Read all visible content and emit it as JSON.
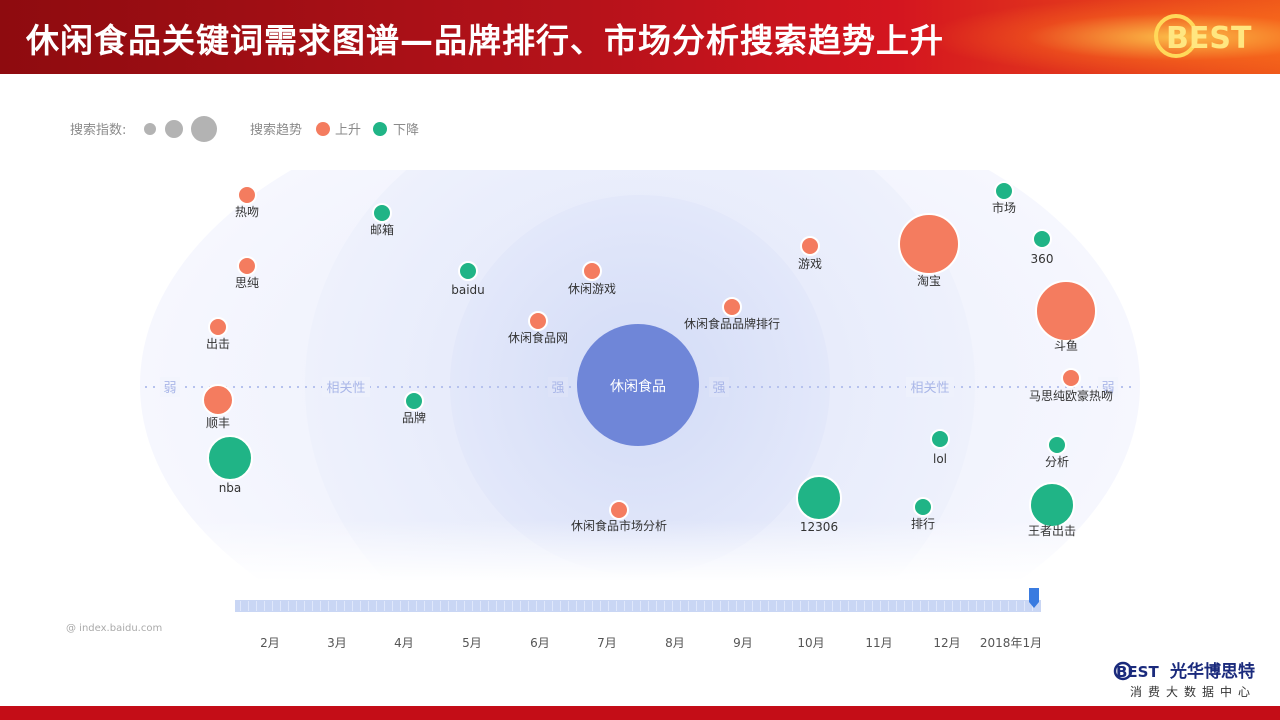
{
  "header": {
    "title": "休闲食品关键词需求图谱—品牌排行、市场分析搜索趋势上升"
  },
  "colors": {
    "rise": "#f47c5f",
    "fall": "#20b486",
    "center": "#6f86d8",
    "legend_gray": "#b3b3b3",
    "timeline": "#c9d6f4",
    "handle": "#3a7be0"
  },
  "chart_data": {
    "type": "scatter",
    "title": "",
    "center_keyword": "休闲食品",
    "legend": {
      "size_label": "搜索指数:",
      "trend_label": "搜索趋势",
      "rise_label": "上升",
      "fall_label": "下降"
    },
    "axis_words": {
      "left_outer": "弱",
      "left_mid": "相关性",
      "left_inner": "强",
      "right_inner": "强",
      "right_mid": "相关性",
      "right_outer": "弱"
    },
    "keywords": [
      {
        "label": "热吻",
        "trend": "上升",
        "size": "small"
      },
      {
        "label": "思纯",
        "trend": "上升",
        "size": "small"
      },
      {
        "label": "出击",
        "trend": "上升",
        "size": "small"
      },
      {
        "label": "顺丰",
        "trend": "上升",
        "size": "medium"
      },
      {
        "label": "nba",
        "trend": "下降",
        "size": "large"
      },
      {
        "label": "邮箱",
        "trend": "下降",
        "size": "small"
      },
      {
        "label": "品牌",
        "trend": "下降",
        "size": "small"
      },
      {
        "label": "baidu",
        "trend": "下降",
        "size": "small"
      },
      {
        "label": "休闲游戏",
        "trend": "上升",
        "size": "small"
      },
      {
        "label": "休闲食品网",
        "trend": "上升",
        "size": "small"
      },
      {
        "label": "休闲食品品牌排行",
        "trend": "上升",
        "size": "small"
      },
      {
        "label": "休闲食品市场分析",
        "trend": "上升",
        "size": "small"
      },
      {
        "label": "游戏",
        "trend": "上升",
        "size": "small"
      },
      {
        "label": "12306",
        "trend": "下降",
        "size": "large"
      },
      {
        "label": "淘宝",
        "trend": "上升",
        "size": "xlarge"
      },
      {
        "label": "lol",
        "trend": "下降",
        "size": "small"
      },
      {
        "label": "排行",
        "trend": "下降",
        "size": "small"
      },
      {
        "label": "市场",
        "trend": "下降",
        "size": "small"
      },
      {
        "label": "360",
        "trend": "下降",
        "size": "small"
      },
      {
        "label": "斗鱼",
        "trend": "上升",
        "size": "xlarge"
      },
      {
        "label": "马思纯欧豪热吻",
        "trend": "上升",
        "size": "small"
      },
      {
        "label": "分析",
        "trend": "下降",
        "size": "small"
      },
      {
        "label": "王者出击",
        "trend": "下降",
        "size": "large"
      }
    ],
    "timeline": {
      "months": [
        "2月",
        "3月",
        "4月",
        "5月",
        "6月",
        "7月",
        "8月",
        "9月",
        "10月",
        "11月",
        "12月",
        "2018年1月"
      ],
      "selected": "2018年1月"
    },
    "source": "@ index.baidu.com"
  },
  "footer": {
    "brand": "光华博思特",
    "subtitle": "消费大数据中心",
    "logo_text": "BEST"
  }
}
